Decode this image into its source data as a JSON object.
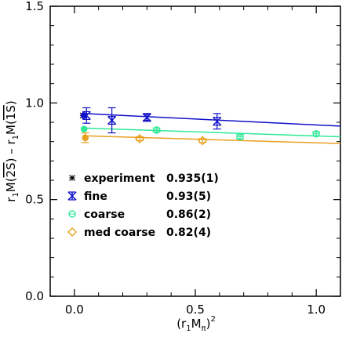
{
  "chart_data": {
    "type": "scatter",
    "xlabel_parts": {
      "open": "(r",
      "sub1": "1",
      "mid": "M",
      "sub2": "π",
      "close": ")",
      "sup": "2"
    },
    "ylabel_parts": {
      "r1": "r",
      "sub1": "1",
      "m1": "M(",
      "state1": "2S",
      "c1": ")",
      "minus": " – ",
      "r2": "r",
      "sub2": "1",
      "m2": "M(",
      "state2": "1S",
      "c2": ")"
    },
    "xlim": [
      -0.1,
      1.1
    ],
    "ylim": [
      0.0,
      1.5
    ],
    "xticks": [
      0.0,
      0.5,
      1.0
    ],
    "xtick_labels": [
      "0.0",
      "0.5",
      "1.0"
    ],
    "yticks": [
      0.0,
      0.5,
      1.0,
      1.5
    ],
    "ytick_labels": [
      "0.0",
      "0.5",
      "1.0",
      "1.5"
    ],
    "grid": false,
    "legend_position": "lower-left",
    "series": [
      {
        "name": "experiment",
        "value_label": "0.935(1)",
        "color": "#000000",
        "marker": "star",
        "points": [
          {
            "x": 0.035,
            "y": 0.935,
            "err": 0.001
          }
        ]
      },
      {
        "name": "fine",
        "value_label": "0.93(5)",
        "color": "#1010c8",
        "marker": "square-star",
        "points": [
          {
            "x": 0.05,
            "y": 0.935,
            "err": 0.04
          },
          {
            "x": 0.155,
            "y": 0.91,
            "err": 0.065
          },
          {
            "x": 0.3,
            "y": 0.925,
            "err": 0.015
          },
          {
            "x": 0.59,
            "y": 0.905,
            "err": 0.04
          }
        ],
        "fit": {
          "x": [
            0.04,
            1.1
          ],
          "y": [
            0.945,
            0.88
          ]
        },
        "extrapolated": {
          "x": 0.04,
          "y": 0.935
        }
      },
      {
        "name": "coarse",
        "value_label": "0.86(2)",
        "color": "#30e898",
        "marker": "circle",
        "points": [
          {
            "x": 0.34,
            "y": 0.86,
            "err": 0.01
          },
          {
            "x": 0.685,
            "y": 0.825,
            "err": 0.01
          },
          {
            "x": 1.0,
            "y": 0.84,
            "err": 0.01
          }
        ],
        "fit": {
          "x": [
            0.04,
            1.1
          ],
          "y": [
            0.87,
            0.825
          ]
        },
        "extrapolated": {
          "x": 0.04,
          "y": 0.865
        }
      },
      {
        "name": "med coarse",
        "value_label": "0.82(4)",
        "color": "#e8a020",
        "marker": "diamond",
        "points": [
          {
            "x": 0.27,
            "y": 0.815,
            "err": 0.01
          },
          {
            "x": 0.53,
            "y": 0.805,
            "err": 0.01
          }
        ],
        "fit": {
          "x": [
            0.04,
            1.1
          ],
          "y": [
            0.83,
            0.79
          ]
        },
        "extrapolated": {
          "x": 0.045,
          "y": 0.82,
          "err": 0.025
        }
      }
    ]
  }
}
